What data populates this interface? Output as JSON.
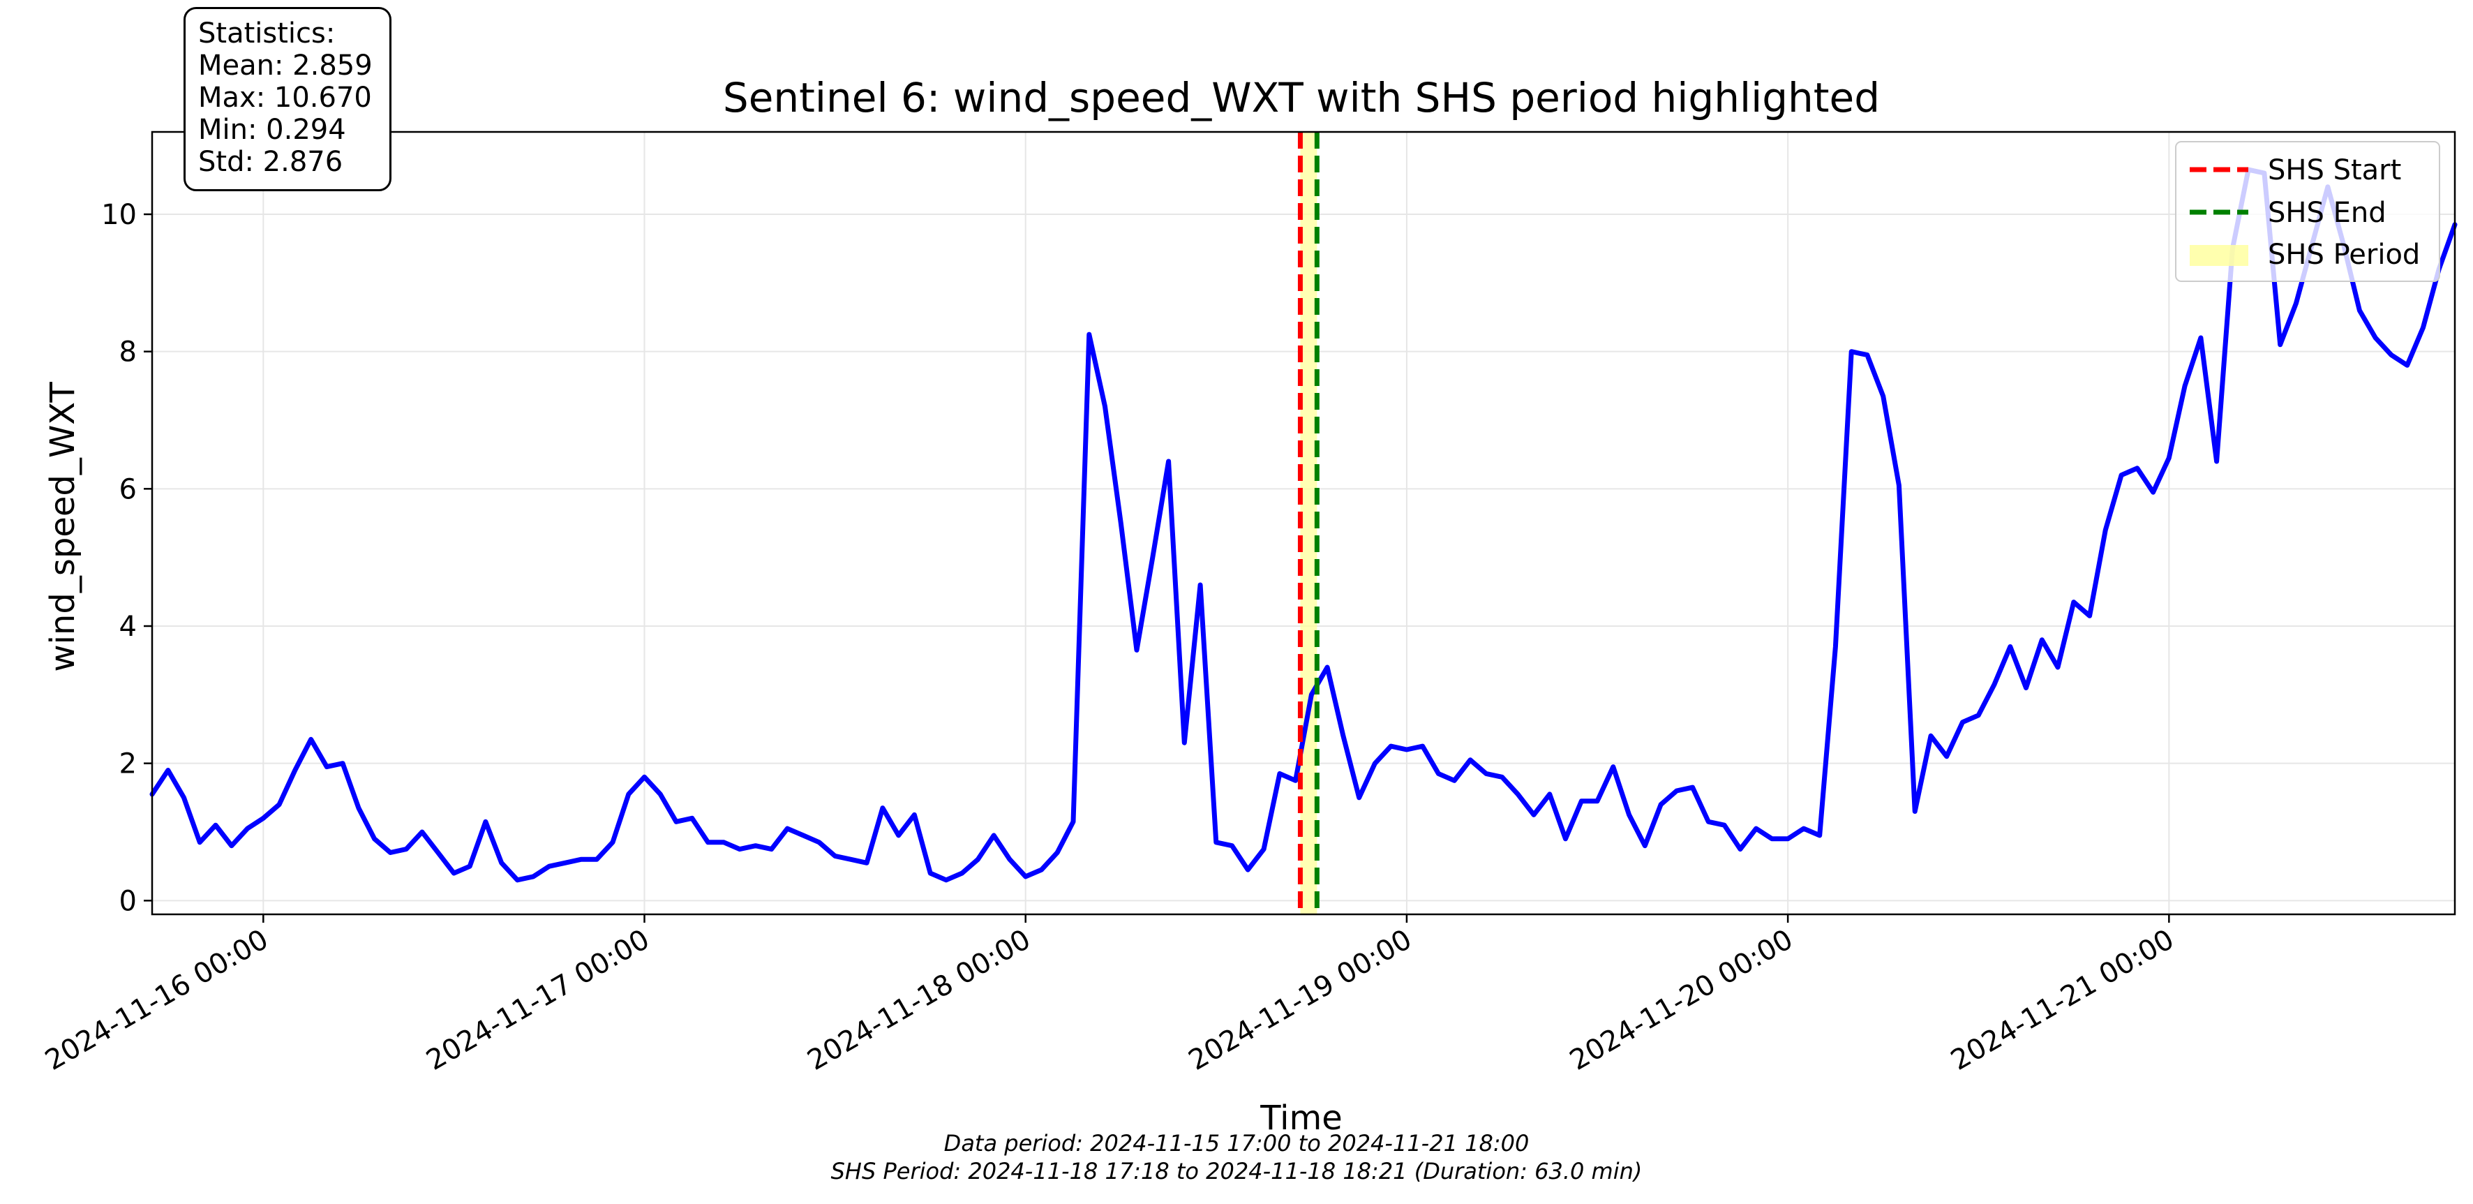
{
  "chart_data": {
    "type": "line",
    "title": "Sentinel 6: wind_speed_WXT with SHS period highlighted",
    "xlabel": "Time",
    "ylabel": "wind_speed_WXT",
    "xlim": [
      "2024-11-15 17:00",
      "2024-11-21 18:00"
    ],
    "ylim": [
      -0.2,
      11.2
    ],
    "y_ticks": [
      0,
      2,
      4,
      6,
      8,
      10
    ],
    "x_ticks": [
      "2024-11-16 00:00",
      "2024-11-17 00:00",
      "2024-11-18 00:00",
      "2024-11-19 00:00",
      "2024-11-20 00:00",
      "2024-11-21 00:00"
    ],
    "grid": true,
    "legend_position": "top-right",
    "series": [
      {
        "color": "#0000ff",
        "x": [
          "2024-11-15 17:00",
          "2024-11-15 18:00",
          "2024-11-15 19:00",
          "2024-11-15 20:00",
          "2024-11-15 21:00",
          "2024-11-15 22:00",
          "2024-11-15 23:00",
          "2024-11-16 00:00",
          "2024-11-16 01:00",
          "2024-11-16 02:00",
          "2024-11-16 03:00",
          "2024-11-16 04:00",
          "2024-11-16 05:00",
          "2024-11-16 06:00",
          "2024-11-16 07:00",
          "2024-11-16 08:00",
          "2024-11-16 09:00",
          "2024-11-16 10:00",
          "2024-11-16 11:00",
          "2024-11-16 12:00",
          "2024-11-16 13:00",
          "2024-11-16 14:00",
          "2024-11-16 15:00",
          "2024-11-16 16:00",
          "2024-11-16 17:00",
          "2024-11-16 18:00",
          "2024-11-16 19:00",
          "2024-11-16 20:00",
          "2024-11-16 21:00",
          "2024-11-16 22:00",
          "2024-11-16 23:00",
          "2024-11-17 00:00",
          "2024-11-17 01:00",
          "2024-11-17 02:00",
          "2024-11-17 03:00",
          "2024-11-17 04:00",
          "2024-11-17 05:00",
          "2024-11-17 06:00",
          "2024-11-17 07:00",
          "2024-11-17 08:00",
          "2024-11-17 09:00",
          "2024-11-17 10:00",
          "2024-11-17 11:00",
          "2024-11-17 12:00",
          "2024-11-17 13:00",
          "2024-11-17 14:00",
          "2024-11-17 15:00",
          "2024-11-17 16:00",
          "2024-11-17 17:00",
          "2024-11-17 18:00",
          "2024-11-17 19:00",
          "2024-11-17 20:00",
          "2024-11-17 21:00",
          "2024-11-17 22:00",
          "2024-11-17 23:00",
          "2024-11-18 00:00",
          "2024-11-18 01:00",
          "2024-11-18 02:00",
          "2024-11-18 03:00",
          "2024-11-18 04:00",
          "2024-11-18 05:00",
          "2024-11-18 06:00",
          "2024-11-18 07:00",
          "2024-11-18 08:00",
          "2024-11-18 09:00",
          "2024-11-18 10:00",
          "2024-11-18 11:00",
          "2024-11-18 12:00",
          "2024-11-18 13:00",
          "2024-11-18 14:00",
          "2024-11-18 15:00",
          "2024-11-18 16:00",
          "2024-11-18 17:00",
          "2024-11-18 18:00",
          "2024-11-18 19:00",
          "2024-11-18 20:00",
          "2024-11-18 21:00",
          "2024-11-18 22:00",
          "2024-11-18 23:00",
          "2024-11-19 00:00",
          "2024-11-19 01:00",
          "2024-11-19 02:00",
          "2024-11-19 03:00",
          "2024-11-19 04:00",
          "2024-11-19 05:00",
          "2024-11-19 06:00",
          "2024-11-19 07:00",
          "2024-11-19 08:00",
          "2024-11-19 09:00",
          "2024-11-19 10:00",
          "2024-11-19 11:00",
          "2024-11-19 12:00",
          "2024-11-19 13:00",
          "2024-11-19 14:00",
          "2024-11-19 15:00",
          "2024-11-19 16:00",
          "2024-11-19 17:00",
          "2024-11-19 18:00",
          "2024-11-19 19:00",
          "2024-11-19 20:00",
          "2024-11-19 21:00",
          "2024-11-19 22:00",
          "2024-11-19 23:00",
          "2024-11-20 00:00",
          "2024-11-20 01:00",
          "2024-11-20 02:00",
          "2024-11-20 03:00",
          "2024-11-20 04:00",
          "2024-11-20 05:00",
          "2024-11-20 06:00",
          "2024-11-20 07:00",
          "2024-11-20 08:00",
          "2024-11-20 09:00",
          "2024-11-20 10:00",
          "2024-11-20 11:00",
          "2024-11-20 12:00",
          "2024-11-20 13:00",
          "2024-11-20 14:00",
          "2024-11-20 15:00",
          "2024-11-20 16:00",
          "2024-11-20 17:00",
          "2024-11-20 18:00",
          "2024-11-20 19:00",
          "2024-11-20 20:00",
          "2024-11-20 21:00",
          "2024-11-20 22:00",
          "2024-11-20 23:00",
          "2024-11-21 00:00",
          "2024-11-21 01:00",
          "2024-11-21 02:00",
          "2024-11-21 03:00",
          "2024-11-21 04:00",
          "2024-11-21 05:00",
          "2024-11-21 06:00",
          "2024-11-21 07:00",
          "2024-11-21 08:00",
          "2024-11-21 09:00",
          "2024-11-21 10:00",
          "2024-11-21 11:00",
          "2024-11-21 12:00",
          "2024-11-21 13:00",
          "2024-11-21 14:00",
          "2024-11-21 15:00",
          "2024-11-21 16:00",
          "2024-11-21 17:00",
          "2024-11-21 18:00"
        ],
        "values": [
          1.55,
          1.9,
          1.5,
          0.85,
          1.1,
          0.8,
          1.05,
          1.2,
          1.4,
          1.9,
          2.35,
          1.95,
          2.0,
          1.35,
          0.9,
          0.7,
          0.75,
          1.0,
          0.7,
          0.4,
          0.5,
          1.15,
          0.55,
          0.3,
          0.35,
          0.5,
          0.55,
          0.6,
          0.6,
          0.85,
          1.55,
          1.8,
          1.55,
          1.15,
          1.2,
          0.85,
          0.85,
          0.75,
          0.8,
          0.75,
          1.05,
          0.95,
          0.85,
          0.65,
          0.6,
          0.55,
          1.35,
          0.95,
          1.25,
          0.4,
          0.3,
          0.4,
          0.6,
          0.95,
          0.6,
          0.35,
          0.45,
          0.7,
          1.15,
          8.25,
          7.2,
          5.5,
          3.65,
          5.0,
          6.4,
          2.3,
          4.6,
          0.85,
          0.8,
          0.45,
          0.75,
          1.85,
          1.75,
          3.0,
          3.4,
          2.4,
          1.5,
          2.0,
          2.25,
          2.2,
          2.25,
          1.85,
          1.75,
          2.05,
          1.85,
          1.8,
          1.55,
          1.25,
          1.55,
          0.9,
          1.45,
          1.45,
          1.95,
          1.25,
          0.8,
          1.4,
          1.6,
          1.65,
          1.15,
          1.1,
          0.75,
          1.05,
          0.9,
          0.9,
          1.05,
          0.95,
          3.7,
          8.0,
          7.95,
          7.35,
          6.05,
          1.3,
          2.4,
          2.1,
          2.6,
          2.7,
          3.15,
          3.7,
          3.1,
          3.8,
          3.4,
          4.35,
          4.15,
          5.4,
          6.2,
          6.3,
          5.95,
          6.45,
          7.5,
          8.2,
          6.4,
          9.5,
          10.65,
          10.6,
          8.1,
          8.7,
          9.55,
          10.4,
          9.55,
          8.6,
          8.2,
          7.95,
          7.8,
          8.35,
          9.2,
          9.85
        ]
      }
    ],
    "shs": {
      "start": "2024-11-18 17:18",
      "end": "2024-11-18 18:21",
      "start_color": "#ff0000",
      "end_color": "#008000",
      "fill_color": "#ffff99"
    }
  },
  "legend": {
    "items": [
      {
        "label": "SHS Start",
        "color": "#ff0000",
        "kind": "dashed-line"
      },
      {
        "label": "SHS End",
        "color": "#008000",
        "kind": "dashed-line"
      },
      {
        "label": "SHS Period",
        "color": "#ffffa0",
        "kind": "patch"
      }
    ]
  },
  "stats_box": {
    "line1": "Statistics:",
    "line2": "Mean: 2.859",
    "line3": "Max: 10.670",
    "line4": "Min: 0.294",
    "line5": "Std: 2.876"
  },
  "footer": {
    "data_period": "Data period: 2024-11-15 17:00 to 2024-11-21 18:00",
    "shs_period": "SHS Period: 2024-11-18 17:18 to 2024-11-18 18:21 (Duration: 63.0 min)"
  }
}
